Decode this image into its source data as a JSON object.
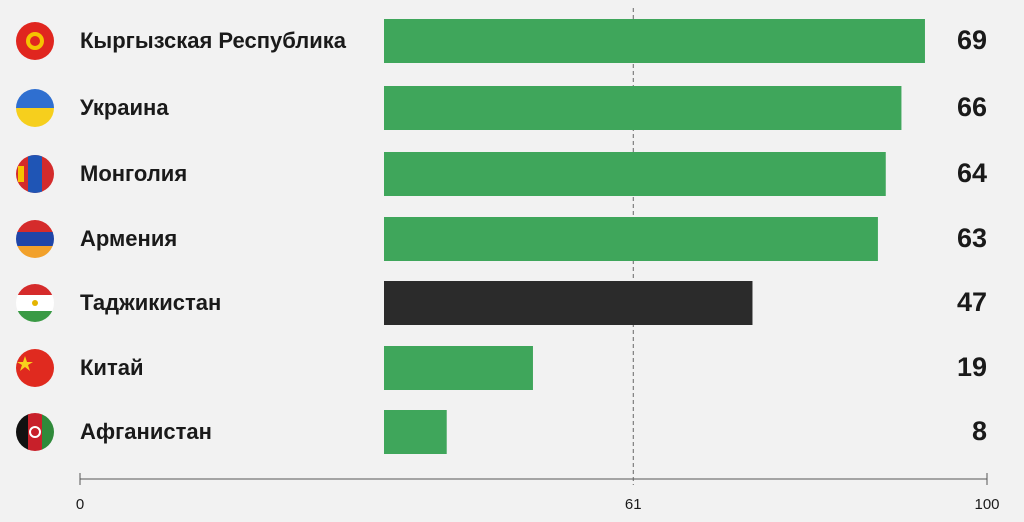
{
  "chart_data": {
    "type": "bar",
    "orientation": "horizontal",
    "categories": [
      "Кыргызская Республика",
      "Украина",
      "Монголия",
      "Армения",
      "Таджикистан",
      "Китай",
      "Афганистан"
    ],
    "values": [
      69,
      66,
      64,
      63,
      47,
      19,
      8
    ],
    "colors": [
      "#3fa65b",
      "#3fa65b",
      "#3fa65b",
      "#3fa65b",
      "#2b2b2b",
      "#3fa65b",
      "#3fa65b"
    ],
    "xlim": [
      0,
      100
    ],
    "xticks": [
      0,
      61,
      100
    ]
  }
}
